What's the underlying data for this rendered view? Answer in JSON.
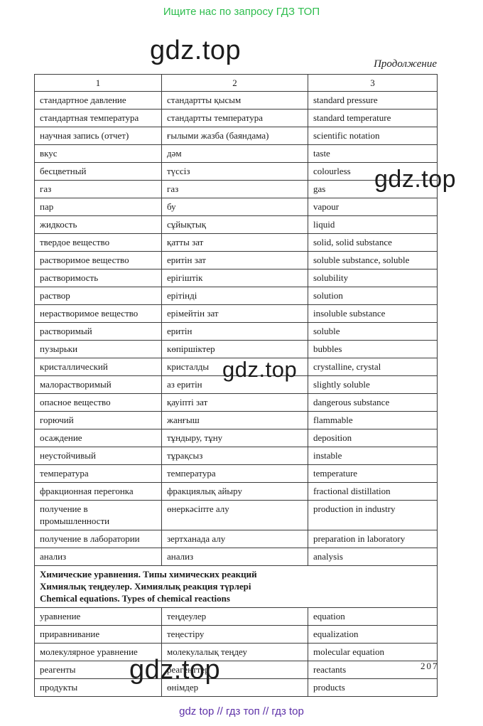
{
  "page": {
    "top_banner": "Ищите нас по запросу ГДЗ ТОП",
    "continuation_label": "Продолжение",
    "watermark": "gdz.top",
    "page_number": "207",
    "footer_links_text": "gdz top  //  гдз топ  //  гдз top"
  },
  "colors": {
    "banner_green": "#2ebd4e",
    "footer_purple": "#5e31a8",
    "table_border": "#3c3c3c",
    "text": "#1c1c1c"
  },
  "table": {
    "headers": [
      "1",
      "2",
      "3"
    ],
    "rows_before_section": [
      [
        "стандартное давление",
        "стандартты қысым",
        "standard pressure"
      ],
      [
        "стандартная температура",
        "стандартты температура",
        "standard temperature"
      ],
      [
        "научная запись (отчет)",
        "ғылыми жазба (баяндама)",
        "scientific notation"
      ],
      [
        "вкус",
        "дәм",
        "taste"
      ],
      [
        "бесцветный",
        "түссіз",
        "colourless"
      ],
      [
        "газ",
        "газ",
        "gas"
      ],
      [
        "пар",
        "бу",
        "vapour"
      ],
      [
        "жидкость",
        "сұйықтық",
        "liquid"
      ],
      [
        "твердое вещество",
        "қатты зат",
        "solid, solid substance"
      ],
      [
        "растворимое вещество",
        "еритін зат",
        "soluble substance, soluble"
      ],
      [
        "растворимость",
        "ерігіштік",
        "solubility"
      ],
      [
        "раствор",
        "ерітінді",
        "solution"
      ],
      [
        "нерастворимое вещество",
        "ерімейтін зат",
        "insoluble substance"
      ],
      [
        "растворимый",
        "еритін",
        "soluble"
      ],
      [
        "пузырьки",
        "көпіршіктер",
        "bubbles"
      ],
      [
        "кристаллический",
        "кристалды",
        "crystalline, crystal"
      ],
      [
        "малорастворимый",
        "аз еритін",
        "slightly soluble"
      ],
      [
        "опасное вещество",
        "қауіпті зат",
        "dangerous substance"
      ],
      [
        "горючий",
        "жанғыш",
        "flammable"
      ],
      [
        "осаждение",
        "тұндыру, тұну",
        "deposition"
      ],
      [
        "неустойчивый",
        "тұрақсыз",
        "instable"
      ],
      [
        "температура",
        "температура",
        "temperature"
      ],
      [
        "фракционная перегонка",
        "фракциялық айыру",
        "fractional distillation"
      ],
      [
        "получение в промышленности",
        "өнеркәсіпте алу",
        "production in industry"
      ],
      [
        "получение в лаборатории",
        "зертханада алу",
        "preparation in laboratory"
      ],
      [
        "анализ",
        "анализ",
        "analysis"
      ]
    ],
    "section_header_lines": [
      "Химические уравнения. Типы химических реакций",
      "Химиялық теңдеулер. Химиялық реакция түрлері",
      "Chemical equations. Types of chemical reactions"
    ],
    "rows_after_section": [
      [
        "уравнение",
        "теңдеулер",
        "equation"
      ],
      [
        "приравнивание",
        "теңестіру",
        "equalization"
      ],
      [
        "молекулярное уравнение",
        "молекулалық теңдеу",
        "molecular equation"
      ],
      [
        "реагенты",
        "реагенттер",
        "reactants"
      ],
      [
        "продукты",
        "өнімдер",
        "products"
      ]
    ]
  }
}
